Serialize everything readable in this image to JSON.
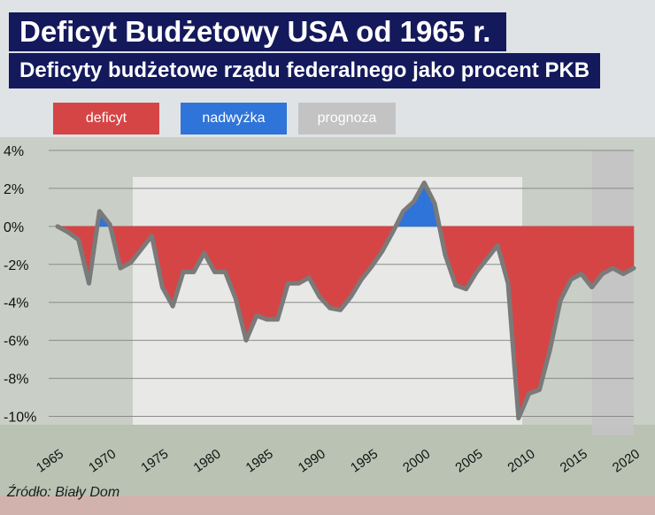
{
  "header": {
    "title": "Deficyt Budżetowy USA od 1965 r.",
    "subtitle": "Deficyty budżetowe rządu federalnego jako procent PKB"
  },
  "legend": {
    "deficit": "deficyt",
    "surplus": "nadwyżka",
    "forecast": "prognoza"
  },
  "source": "Źródło: Biały Dom",
  "colors": {
    "title_background": "#14195c",
    "deficit": "#d64545",
    "surplus": "#2f74d8",
    "forecast": "#c3c3c3",
    "line": "#7a7a7a"
  },
  "chart_data": {
    "type": "area",
    "ylim": [
      -11,
      4
    ],
    "xlim": [
      1965,
      2020
    ],
    "y_ticks": [
      4,
      2,
      0,
      -2,
      -4,
      -6,
      -8,
      -10
    ],
    "y_tick_labels": [
      "4%",
      "2%",
      "0%",
      "-2%",
      "-4%",
      "-6%",
      "-8%",
      "-10%"
    ],
    "x_ticks": [
      1965,
      1970,
      1975,
      1980,
      1985,
      1990,
      1995,
      2000,
      2005,
      2010,
      2015,
      2020
    ],
    "x_tick_labels": [
      "1965",
      "1970",
      "1975",
      "1980",
      "1985",
      "1990",
      "1995",
      "2000",
      "2005",
      "2010",
      "2015",
      "2020"
    ],
    "grid": true,
    "forecast_from": 2016,
    "series": [
      {
        "name": "deficyt / nadwyżka (% PKB)",
        "x": [
          1965,
          1966,
          1967,
          1968,
          1969,
          1970,
          1971,
          1972,
          1973,
          1974,
          1975,
          1976,
          1977,
          1978,
          1979,
          1980,
          1981,
          1982,
          1983,
          1984,
          1985,
          1986,
          1987,
          1988,
          1989,
          1990,
          1991,
          1992,
          1993,
          1994,
          1995,
          1996,
          1997,
          1998,
          1999,
          2000,
          2001,
          2002,
          2003,
          2004,
          2005,
          2006,
          2007,
          2008,
          2009,
          2010,
          2011,
          2012,
          2013,
          2014,
          2015,
          2016,
          2017,
          2018,
          2019,
          2020
        ],
        "values": [
          0.0,
          -0.3,
          -0.7,
          -3.0,
          0.8,
          0.1,
          -2.2,
          -1.9,
          -1.2,
          -0.5,
          -3.2,
          -4.2,
          -2.4,
          -2.4,
          -1.4,
          -2.4,
          -2.4,
          -3.8,
          -6.0,
          -4.7,
          -4.9,
          -4.9,
          -3.0,
          -3.0,
          -2.7,
          -3.7,
          -4.3,
          -4.4,
          -3.7,
          -2.8,
          -2.1,
          -1.3,
          -0.3,
          0.8,
          1.3,
          2.3,
          1.2,
          -1.5,
          -3.1,
          -3.3,
          -2.4,
          -1.7,
          -1.0,
          -3.0,
          -10.1,
          -8.8,
          -8.6,
          -6.5,
          -3.9,
          -2.8,
          -2.5,
          -3.2,
          -2.5,
          -2.2,
          -2.5,
          -2.2
        ]
      }
    ]
  }
}
